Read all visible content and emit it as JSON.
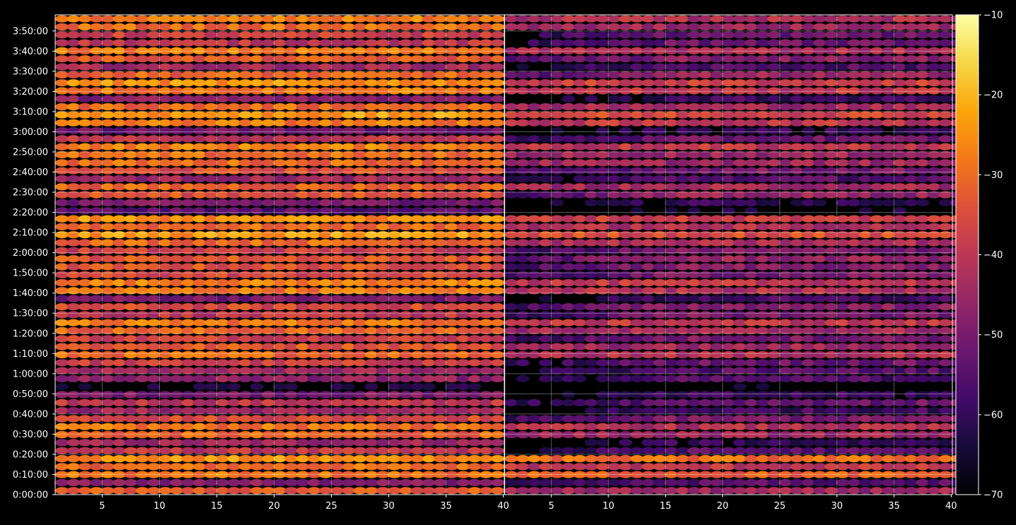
{
  "chart_data": {
    "type": "heatmap",
    "title": "",
    "panels": [
      {
        "name": "",
        "x_range": [
          1,
          40
        ],
        "x_ticks": [
          5,
          10,
          15,
          20,
          25,
          30,
          35,
          40
        ],
        "band_levels": [
          -33,
          -48,
          -29,
          -30,
          -25,
          -40,
          -45,
          -31,
          -29,
          -35,
          -45,
          -40,
          -50,
          -65,
          -47,
          -45,
          -38,
          -30,
          -33,
          -37,
          -31,
          -28,
          -40,
          -36,
          -50,
          -28,
          -27,
          -36,
          -34,
          -33,
          -38,
          -30,
          -24,
          -30,
          -25,
          -55,
          -50,
          -34,
          -31,
          -45,
          -35,
          -30,
          -30,
          -27,
          -40,
          -52,
          -28,
          -24,
          -30,
          -48,
          -28,
          -25,
          -31,
          -44,
          -33,
          -28,
          -40,
          -38,
          -30,
          -28
        ]
      },
      {
        "name": "",
        "x_range": [
          1,
          40
        ],
        "x_ticks": [
          5,
          10,
          15,
          20,
          25,
          30,
          35,
          40
        ],
        "band_levels": [
          -45,
          -55,
          -32,
          -40,
          -30,
          -55,
          -60,
          -45,
          -42,
          -50,
          -58,
          -52,
          -60,
          -68,
          -56,
          -55,
          -52,
          -42,
          -45,
          -50,
          -44,
          -40,
          -50,
          -48,
          -58,
          -42,
          -40,
          -50,
          -48,
          -46,
          -50,
          -43,
          -35,
          -42,
          -38,
          -65,
          -60,
          -46,
          -44,
          -55,
          -50,
          -45,
          -45,
          -40,
          -52,
          -60,
          -40,
          -36,
          -44,
          -58,
          -40,
          -38,
          -46,
          -56,
          -48,
          -42,
          -52,
          -52,
          -45,
          -42
        ]
      }
    ],
    "y_ticks": [
      "0:00:00",
      "0:10:00",
      "0:20:00",
      "0:30:00",
      "0:40:00",
      "0:50:00",
      "1:00:00",
      "1:10:00",
      "1:20:00",
      "1:30:00",
      "1:40:00",
      "1:50:00",
      "2:00:00",
      "2:10:00",
      "2:20:00",
      "2:30:00",
      "2:40:00",
      "2:50:00",
      "3:00:00",
      "3:10:00",
      "3:20:00",
      "3:30:00",
      "3:40:00",
      "3:50:00"
    ],
    "y_range_minutes": [
      0,
      238
    ],
    "colorbar": {
      "colormap": "inferno",
      "range": [
        -70,
        -10
      ],
      "ticks": [
        "-10",
        "-20",
        "-30",
        "-40",
        "-50",
        "-60",
        "-70"
      ]
    },
    "grid": true
  }
}
